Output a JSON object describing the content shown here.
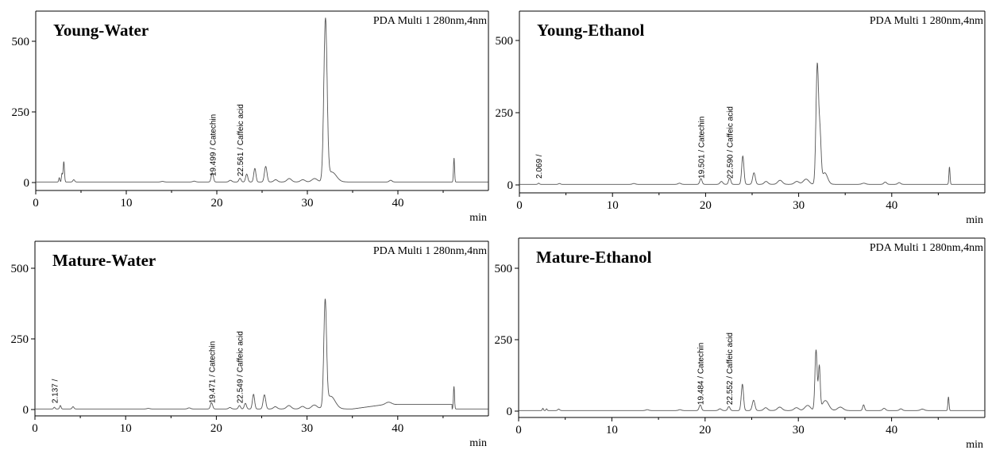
{
  "chart_data": [
    {
      "type": "line",
      "title": "Young-Water",
      "detector": "PDA Multi 1 280nm,4nm",
      "xlabel": "min",
      "xlim": [
        0,
        50
      ],
      "ylim": [
        -10,
        600
      ],
      "xticks": [
        0,
        10,
        20,
        30,
        40
      ],
      "yticks": [
        0,
        250,
        500
      ],
      "baseline": 2,
      "peaks": [
        {
          "x": 2.6,
          "y": 15,
          "w": 0.06
        },
        {
          "x": 2.9,
          "y": 30,
          "w": 0.06
        },
        {
          "x": 3.1,
          "y": 72,
          "w": 0.07
        },
        {
          "x": 4.2,
          "y": 8,
          "w": 0.1
        },
        {
          "x": 14.0,
          "y": 2,
          "w": 0.15
        },
        {
          "x": 17.5,
          "y": 3,
          "w": 0.15
        },
        {
          "x": 19.5,
          "y": 33,
          "w": 0.12
        },
        {
          "x": 21.5,
          "y": 6,
          "w": 0.15
        },
        {
          "x": 22.56,
          "y": 13,
          "w": 0.12
        },
        {
          "x": 23.3,
          "y": 28,
          "w": 0.12
        },
        {
          "x": 24.2,
          "y": 48,
          "w": 0.12
        },
        {
          "x": 25.4,
          "y": 55,
          "w": 0.14
        },
        {
          "x": 26.5,
          "y": 8,
          "w": 0.2
        },
        {
          "x": 28.0,
          "y": 12,
          "w": 0.25
        },
        {
          "x": 29.5,
          "y": 8,
          "w": 0.25
        },
        {
          "x": 30.8,
          "y": 12,
          "w": 0.3
        },
        {
          "x": 32.0,
          "y": 568,
          "w": 0.18
        },
        {
          "x": 32.7,
          "y": 35,
          "w": 0.5
        },
        {
          "x": 39.2,
          "y": 6,
          "w": 0.15
        },
        {
          "x": 46.2,
          "y": 85,
          "w": 0.06
        }
      ],
      "annotations": [
        {
          "x": 19.499,
          "text": "19.499 / Catechin"
        },
        {
          "x": 22.561,
          "text": "22.561 / Caffeic acid"
        }
      ]
    },
    {
      "type": "line",
      "title": "Young-Ethanol",
      "detector": "PDA Multi 1 280nm,4nm",
      "xlabel": "min",
      "xlim": [
        0,
        50
      ],
      "ylim": [
        -10,
        600
      ],
      "xticks": [
        0,
        10,
        20,
        30,
        40
      ],
      "yticks": [
        0,
        250,
        500
      ],
      "baseline": 2,
      "peaks": [
        {
          "x": 2.07,
          "y": 4,
          "w": 0.08
        },
        {
          "x": 4.3,
          "y": 3,
          "w": 0.1
        },
        {
          "x": 12.3,
          "y": 3,
          "w": 0.15
        },
        {
          "x": 17.2,
          "y": 4,
          "w": 0.15
        },
        {
          "x": 19.5,
          "y": 20,
          "w": 0.12
        },
        {
          "x": 21.7,
          "y": 10,
          "w": 0.15
        },
        {
          "x": 22.59,
          "y": 22,
          "w": 0.12
        },
        {
          "x": 24.0,
          "y": 98,
          "w": 0.12
        },
        {
          "x": 25.2,
          "y": 40,
          "w": 0.14
        },
        {
          "x": 26.5,
          "y": 10,
          "w": 0.2
        },
        {
          "x": 28.0,
          "y": 14,
          "w": 0.25
        },
        {
          "x": 29.8,
          "y": 10,
          "w": 0.25
        },
        {
          "x": 30.8,
          "y": 18,
          "w": 0.3
        },
        {
          "x": 32.0,
          "y": 412,
          "w": 0.14
        },
        {
          "x": 32.3,
          "y": 150,
          "w": 0.12
        },
        {
          "x": 32.8,
          "y": 40,
          "w": 0.3
        },
        {
          "x": 37.0,
          "y": 4,
          "w": 0.2
        },
        {
          "x": 39.3,
          "y": 8,
          "w": 0.15
        },
        {
          "x": 40.8,
          "y": 6,
          "w": 0.15
        },
        {
          "x": 46.2,
          "y": 60,
          "w": 0.06
        }
      ],
      "annotations": [
        {
          "x": 2.069,
          "text": "2.069 /"
        },
        {
          "x": 19.501,
          "text": "19.501 / Catechin"
        },
        {
          "x": 22.59,
          "text": "22.590 / Caffeic acid"
        }
      ]
    },
    {
      "type": "line",
      "title": "Mature-Water",
      "detector": "PDA Multi 1 280nm,4nm",
      "xlabel": "min",
      "xlim": [
        0,
        50
      ],
      "ylim": [
        -10,
        600
      ],
      "xticks": [
        0,
        10,
        20,
        30,
        40
      ],
      "yticks": [
        0,
        250,
        500
      ],
      "baseline": 2,
      "peaks": [
        {
          "x": 2.14,
          "y": 6,
          "w": 0.08
        },
        {
          "x": 2.8,
          "y": 12,
          "w": 0.08
        },
        {
          "x": 4.2,
          "y": 8,
          "w": 0.1
        },
        {
          "x": 12.5,
          "y": 2,
          "w": 0.15
        },
        {
          "x": 17.0,
          "y": 4,
          "w": 0.15
        },
        {
          "x": 19.47,
          "y": 22,
          "w": 0.12
        },
        {
          "x": 21.5,
          "y": 5,
          "w": 0.15
        },
        {
          "x": 22.55,
          "y": 12,
          "w": 0.12
        },
        {
          "x": 23.2,
          "y": 20,
          "w": 0.12
        },
        {
          "x": 24.1,
          "y": 52,
          "w": 0.12
        },
        {
          "x": 25.3,
          "y": 50,
          "w": 0.14
        },
        {
          "x": 26.5,
          "y": 8,
          "w": 0.2
        },
        {
          "x": 28.0,
          "y": 12,
          "w": 0.25
        },
        {
          "x": 29.5,
          "y": 9,
          "w": 0.25
        },
        {
          "x": 30.8,
          "y": 14,
          "w": 0.3
        },
        {
          "x": 32.0,
          "y": 368,
          "w": 0.15
        },
        {
          "x": 32.6,
          "y": 45,
          "w": 0.5
        },
        {
          "x": 39.0,
          "y": 8,
          "w": 0.3
        },
        {
          "x": 46.2,
          "y": 80,
          "w": 0.06
        }
      ],
      "hump": {
        "from": 35,
        "to": 46,
        "level": 16
      },
      "annotations": [
        {
          "x": 2.137,
          "text": "2.137 /"
        },
        {
          "x": 19.471,
          "text": "19.471 / Catechin"
        },
        {
          "x": 22.549,
          "text": "22.549 / Caffeic acid"
        }
      ]
    },
    {
      "type": "line",
      "title": "Mature-Ethanol",
      "detector": "PDA Multi 1 280nm,4nm",
      "xlabel": "min",
      "xlim": [
        0,
        50
      ],
      "ylim": [
        -10,
        600
      ],
      "xticks": [
        0,
        10,
        20,
        30,
        40
      ],
      "yticks": [
        0,
        250,
        500
      ],
      "baseline": 2,
      "peaks": [
        {
          "x": 2.6,
          "y": 8,
          "w": 0.06
        },
        {
          "x": 3.0,
          "y": 6,
          "w": 0.06
        },
        {
          "x": 4.3,
          "y": 5,
          "w": 0.1
        },
        {
          "x": 13.8,
          "y": 3,
          "w": 0.15
        },
        {
          "x": 17.3,
          "y": 3,
          "w": 0.15
        },
        {
          "x": 19.48,
          "y": 20,
          "w": 0.12
        },
        {
          "x": 21.6,
          "y": 6,
          "w": 0.15
        },
        {
          "x": 22.55,
          "y": 14,
          "w": 0.12
        },
        {
          "x": 24.0,
          "y": 92,
          "w": 0.12
        },
        {
          "x": 25.2,
          "y": 36,
          "w": 0.14
        },
        {
          "x": 26.5,
          "y": 10,
          "w": 0.2
        },
        {
          "x": 28.0,
          "y": 12,
          "w": 0.25
        },
        {
          "x": 29.8,
          "y": 10,
          "w": 0.25
        },
        {
          "x": 31.0,
          "y": 18,
          "w": 0.3
        },
        {
          "x": 31.9,
          "y": 212,
          "w": 0.12
        },
        {
          "x": 32.25,
          "y": 150,
          "w": 0.1
        },
        {
          "x": 32.9,
          "y": 35,
          "w": 0.35
        },
        {
          "x": 34.5,
          "y": 12,
          "w": 0.3
        },
        {
          "x": 37.0,
          "y": 20,
          "w": 0.1
        },
        {
          "x": 39.2,
          "y": 8,
          "w": 0.15
        },
        {
          "x": 41.0,
          "y": 6,
          "w": 0.15
        },
        {
          "x": 43.3,
          "y": 5,
          "w": 0.2
        },
        {
          "x": 46.1,
          "y": 48,
          "w": 0.06
        }
      ],
      "annotations": [
        {
          "x": 19.484,
          "text": "19.484 / Catechin"
        },
        {
          "x": 22.552,
          "text": "22.552 / Caffeic acid"
        }
      ]
    }
  ]
}
